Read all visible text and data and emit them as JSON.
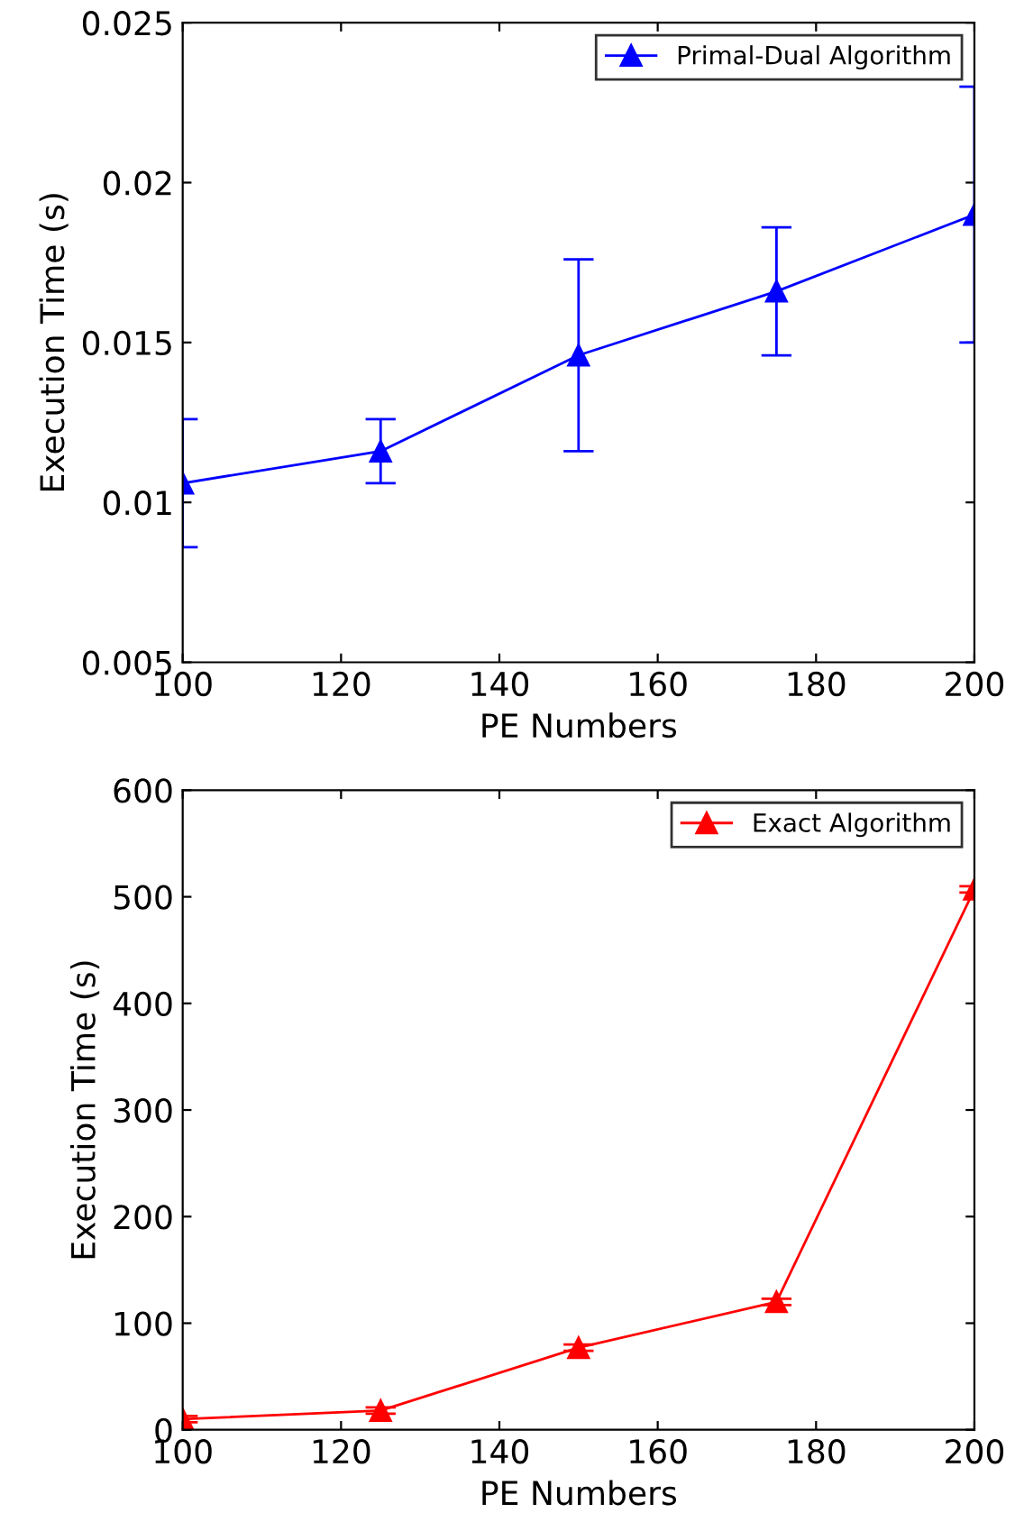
{
  "chart_data": [
    {
      "type": "line",
      "x": [
        100,
        125,
        150,
        175,
        200
      ],
      "xlabel": "PE Numbers",
      "ylabel": "Execution Time (s)",
      "series": [
        {
          "name": "Primal-Dual Algorithm",
          "color": "#0000ff",
          "values": [
            0.0106,
            0.0116,
            0.0146,
            0.0166,
            0.019
          ],
          "errors": [
            0.002,
            0.001,
            0.003,
            0.002,
            0.004
          ]
        }
      ],
      "xlim": [
        100,
        200
      ],
      "xticks": [
        100,
        120,
        140,
        160,
        180,
        200
      ],
      "ylim": [
        0.005,
        0.025
      ],
      "yticks": [
        0.005,
        0.01,
        0.015,
        0.02,
        0.025
      ],
      "marker": "triangle",
      "legend": "top right",
      "grid": false
    },
    {
      "type": "line",
      "x": [
        100,
        125,
        150,
        175,
        200
      ],
      "xlabel": "PE Numbers",
      "ylabel": "Execution Time (s)",
      "series": [
        {
          "name": "Exact Algorithm",
          "color": "#ff0000",
          "values": [
            10,
            18,
            77,
            120,
            507
          ],
          "errors": [
            3,
            3,
            3,
            3,
            3
          ]
        }
      ],
      "xlim": [
        100,
        200
      ],
      "xticks": [
        100,
        120,
        140,
        160,
        180,
        200
      ],
      "ylim": [
        0,
        600
      ],
      "yticks": [
        0,
        100,
        200,
        300,
        400,
        500,
        600
      ],
      "marker": "triangle",
      "legend": "top right",
      "grid": false
    }
  ]
}
